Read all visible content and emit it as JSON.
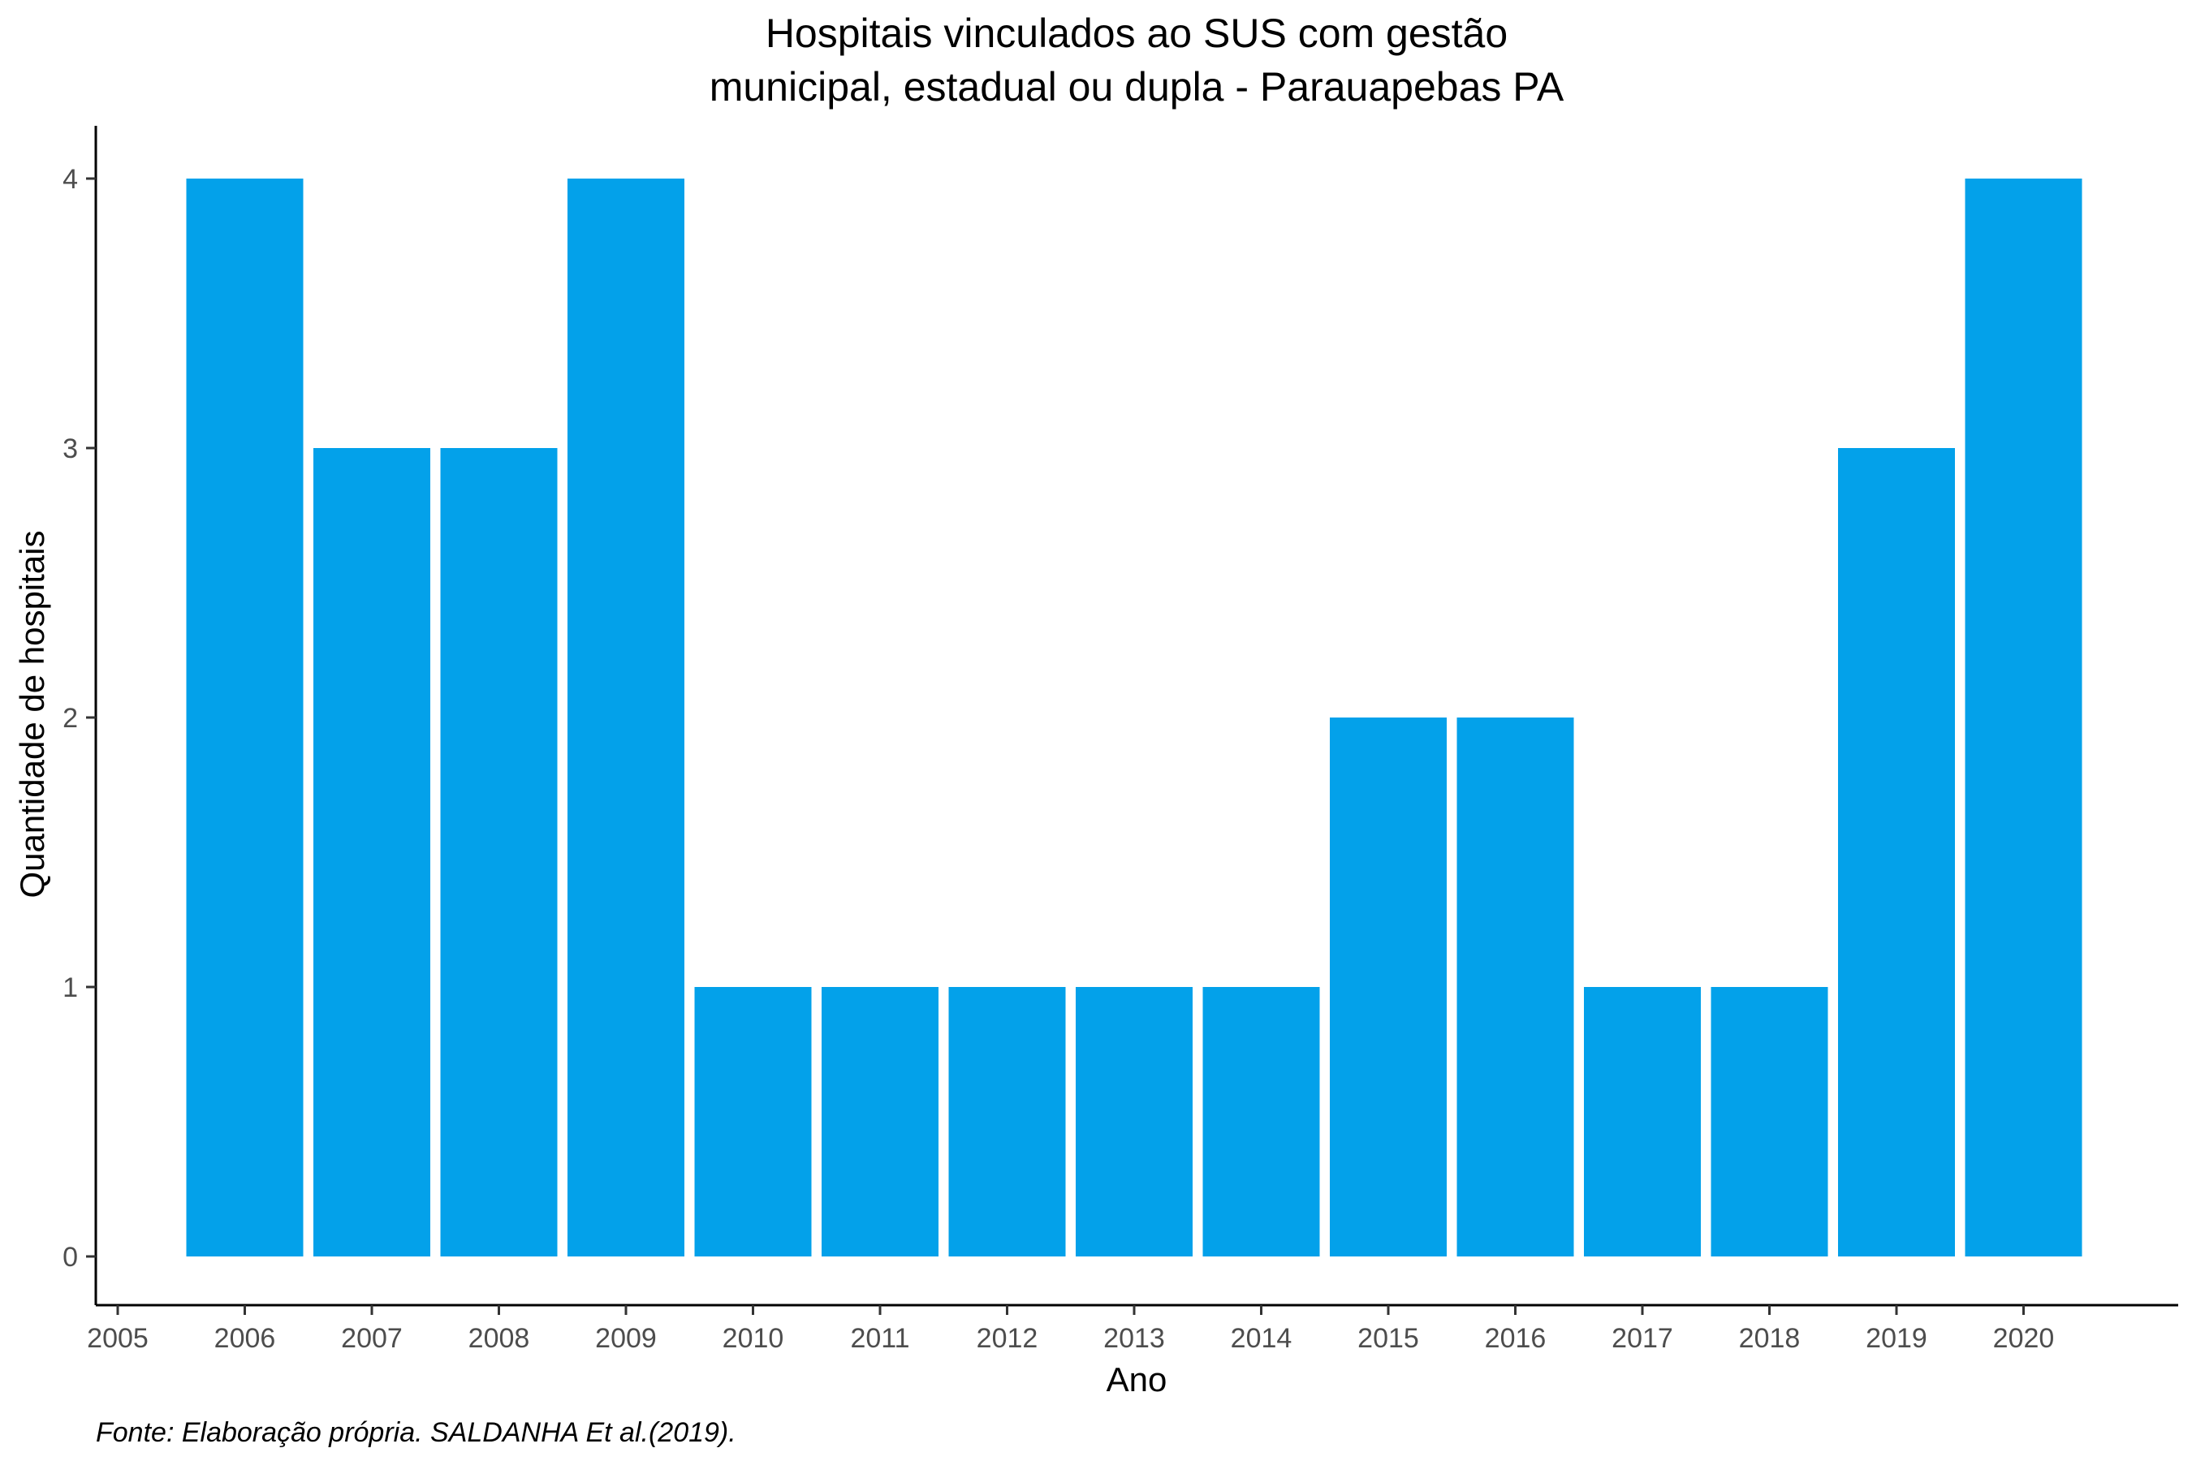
{
  "chart_data": {
    "type": "bar",
    "title": [
      "Hospitais vinculados ao SUS com gestão",
      "municipal, estadual ou dupla -  Parauapebas PA"
    ],
    "xlabel": "Ano",
    "ylabel": "Quantidade de hospitais",
    "caption": "Fonte: Elaboração própria. SALDANHA Et al.(2019).",
    "categories": [
      "2006",
      "2007",
      "2008",
      "2009",
      "2010",
      "2011",
      "2012",
      "2013",
      "2014",
      "2015",
      "2016",
      "2017",
      "2018",
      "2019",
      "2020"
    ],
    "values": [
      4,
      3,
      3,
      4,
      1,
      1,
      1,
      1,
      1,
      2,
      2,
      1,
      1,
      3,
      4
    ],
    "x_ticks": [
      "2005",
      "2006",
      "2007",
      "2008",
      "2009",
      "2010",
      "2011",
      "2012",
      "2013",
      "2014",
      "2015",
      "2016",
      "2017",
      "2018",
      "2019",
      "2020"
    ],
    "y_ticks": [
      "0",
      "1",
      "2",
      "3",
      "4"
    ],
    "xlim": [
      2005,
      2021
    ],
    "ylim": [
      0,
      4
    ],
    "bar_color": "#03a1ea",
    "grid": false,
    "legend": "none"
  }
}
